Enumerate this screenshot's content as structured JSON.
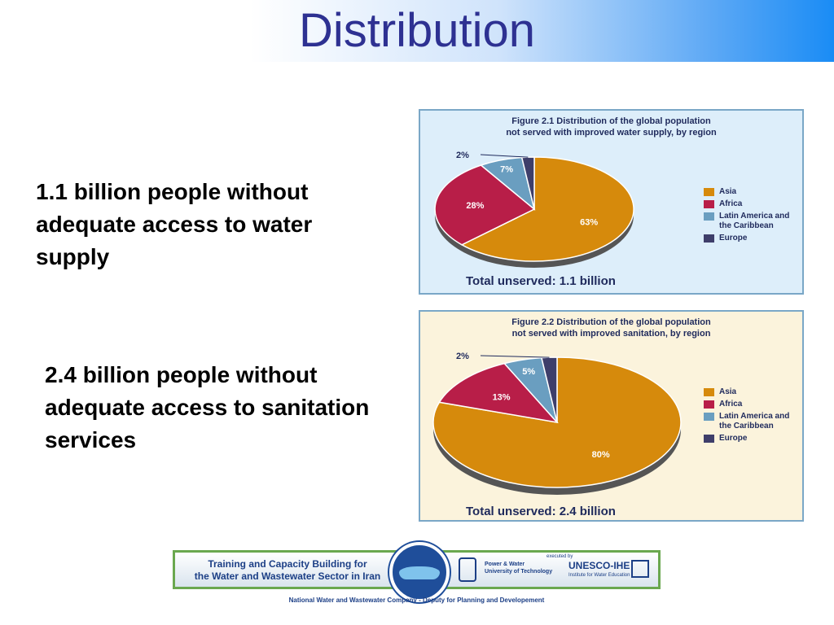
{
  "slide": {
    "title": "Distribution",
    "bullets": [
      "1.1 billion people without adequate access to water supply",
      "2.4 billion people without adequate access to sanitation services"
    ]
  },
  "chart_data": [
    {
      "type": "pie",
      "caption_line1": "Figure 2.1    Distribution of the global population",
      "caption_line2": "not served with  improved water supply, by region",
      "total_label": "Total unserved: 1.1 billion",
      "legend_placement": "right",
      "categories": [
        "Asia",
        "Africa",
        "Latin America and the Caribbean",
        "Europe"
      ],
      "values": [
        63,
        28,
        7,
        2
      ],
      "value_labels": [
        "63%",
        "28%",
        "7%",
        "2%"
      ],
      "colors": [
        "#d68a0c",
        "#b81e48",
        "#6a9ec0",
        "#3e3e6a"
      ]
    },
    {
      "type": "pie",
      "caption_line1": "Figure 2.2    Distribution of the global population",
      "caption_line2": "not served with improved sanitation, by region",
      "total_label": "Total unserved: 2.4 billion",
      "legend_placement": "right",
      "categories": [
        "Asia",
        "Africa",
        "Latin America and the Caribbean",
        "Europe"
      ],
      "values": [
        80,
        13,
        5,
        2
      ],
      "value_labels": [
        "80%",
        "13%",
        "5%",
        "2%"
      ],
      "colors": [
        "#d68a0c",
        "#b81e48",
        "#6a9ec0",
        "#3e3e6a"
      ]
    }
  ],
  "footer": {
    "program_line1": "Training and Capacity Building for",
    "program_line2": "the Water and Wastewater Sector in Iran",
    "pw_line1": "Power & Water",
    "pw_line2": "University of Technology",
    "executed_by": "executed by",
    "unesco": "UNESCO-IHE",
    "unesco_sub": "Institute for Water Education",
    "caption": "National Water and Wastewater Company - Deputy for Planning and Developement"
  }
}
